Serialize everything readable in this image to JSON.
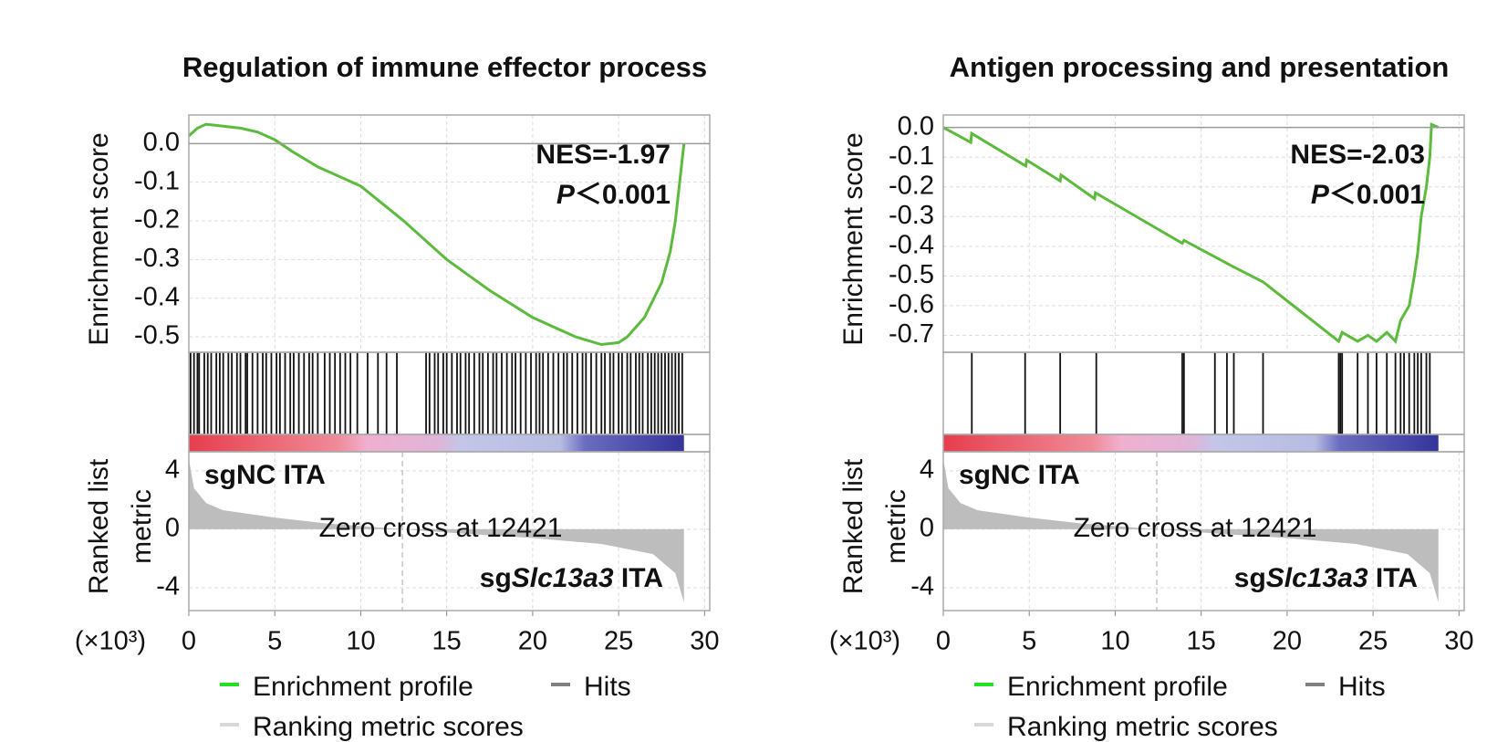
{
  "chart_data": [
    {
      "type": "line",
      "title": "Regulation of immune effector process",
      "ylabel": "Enrichment score",
      "y2label": [
        "Ranked list",
        "metric"
      ],
      "x_unit": "(×10³)",
      "nes": "NES=-1.97",
      "p_symbol": "P",
      "p_text": "＜0.001",
      "high_label": "sgNC ITA",
      "low_label": [
        "sg",
        "Slc13a3",
        " ITA"
      ],
      "zero_cross_label": "Zero cross at 12421",
      "zero_cross": 12.421,
      "xlim": [
        0,
        30.3
      ],
      "xticks": [
        0,
        5,
        10,
        15,
        20,
        25,
        30
      ],
      "ylim": [
        -0.54,
        0.074
      ],
      "yticks": [
        {
          "value": 0,
          "label": "0.0"
        },
        -0.1,
        -0.2,
        -0.3,
        -0.4,
        -0.5
      ],
      "y2lim": [
        -5.56,
        5.3
      ],
      "y2ticks": [
        4,
        0,
        -4
      ],
      "grid": true,
      "series": [
        {
          "name": "Enrichment profile",
          "color": "#5cba3c",
          "x": [
            0,
            0.5,
            1,
            2,
            3,
            4,
            5,
            6,
            7.5,
            10,
            12.5,
            15,
            17.5,
            20,
            22.5,
            24,
            25,
            25.5,
            26.5,
            27.5,
            28,
            28.3,
            28.6,
            28.8
          ],
          "values": [
            0.02,
            0.04,
            0.05,
            0.045,
            0.04,
            0.03,
            0.01,
            -0.02,
            -0.06,
            -0.11,
            -0.2,
            -0.3,
            -0.38,
            -0.45,
            -0.5,
            -0.52,
            -0.515,
            -0.5,
            -0.45,
            -0.36,
            -0.28,
            -0.2,
            -0.08,
            0
          ]
        },
        {
          "name": "Hits",
          "color": "#808080",
          "x": [
            0.1,
            0.3,
            0.5,
            0.6,
            0.9,
            1.1,
            1.3,
            1.6,
            1.8,
            2.0,
            2.3,
            2.5,
            2.8,
            3.0,
            3.3,
            3.4,
            3.7,
            4.0,
            4.3,
            4.5,
            4.8,
            5.1,
            5.3,
            5.6,
            5.9,
            6.1,
            6.4,
            6.7,
            7.0,
            7.2,
            7.5,
            7.9,
            8.2,
            8.5,
            8.8,
            9.1,
            9.4,
            9.8,
            10.4,
            11.0,
            11.5,
            12.1,
            13.8,
            14.0,
            14.3,
            14.5,
            14.8,
            15.0,
            15.3,
            15.6,
            15.8,
            16.1,
            16.3,
            16.6,
            16.9,
            17.1,
            17.4,
            17.7,
            17.9,
            18.2,
            18.5,
            18.8,
            19.0,
            19.3,
            19.6,
            19.9,
            20.2,
            20.4,
            20.6,
            20.9,
            21.2,
            21.5,
            21.8,
            22.0,
            22.3,
            22.6,
            22.9,
            23.1,
            23.4,
            23.7,
            24.0,
            24.2,
            24.5,
            24.7,
            25.0,
            25.2,
            25.5,
            25.7,
            26.0,
            26.2,
            26.4,
            26.7,
            26.9,
            27.1,
            27.3,
            27.5,
            27.7,
            27.9,
            28.1,
            28.3,
            28.5,
            28.7
          ]
        },
        {
          "name": "Ranking metric scores",
          "color": "#d8d8d8",
          "axis": "y2",
          "x": [
            0,
            0.3,
            1,
            2,
            5,
            8,
            12.421,
            16,
            20,
            24,
            27,
            28.3,
            28.8
          ],
          "values": [
            4.8,
            2.8,
            1.8,
            1.3,
            0.8,
            0.4,
            0,
            -0.3,
            -0.6,
            -1,
            -1.7,
            -3,
            -5
          ]
        }
      ]
    },
    {
      "type": "line",
      "title": "Antigen processing and presentation",
      "ylabel": "Enrichment score",
      "y2label": [
        "Ranked list",
        "metric"
      ],
      "x_unit": "(×10³)",
      "nes": "NES=-2.03",
      "p_symbol": "P",
      "p_text": "＜0.001",
      "high_label": "sgNC ITA",
      "low_label": [
        "sg",
        "Slc13a3",
        " ITA"
      ],
      "zero_cross_label": "Zero cross at 12421",
      "zero_cross": 12.421,
      "xlim": [
        0,
        30.3
      ],
      "xticks": [
        0,
        5,
        10,
        15,
        20,
        25,
        30
      ],
      "ylim": [
        -0.757,
        0.042
      ],
      "yticks": [
        {
          "value": 0,
          "label": "0.0"
        },
        -0.1,
        -0.2,
        -0.3,
        -0.4,
        -0.5,
        -0.6,
        -0.7
      ],
      "y2lim": [
        -5.56,
        5.3
      ],
      "y2ticks": [
        4,
        0,
        -4
      ],
      "grid": true,
      "series": [
        {
          "name": "Enrichment profile",
          "color": "#5cba3c",
          "x": [
            0,
            1.6,
            1.65,
            4.8,
            4.85,
            6.8,
            6.85,
            8.8,
            8.85,
            13.9,
            14.0,
            16.9,
            18.6,
            23.0,
            23.2,
            24.1,
            24.7,
            25.2,
            25.8,
            26.3,
            26.6,
            27.1,
            27.4,
            27.6,
            27.8,
            28.1,
            28.3,
            28.4,
            28.8
          ],
          "values": [
            0,
            -0.05,
            -0.02,
            -0.13,
            -0.11,
            -0.18,
            -0.16,
            -0.24,
            -0.22,
            -0.39,
            -0.38,
            -0.47,
            -0.52,
            -0.72,
            -0.69,
            -0.72,
            -0.7,
            -0.72,
            -0.69,
            -0.72,
            -0.65,
            -0.6,
            -0.5,
            -0.42,
            -0.3,
            -0.2,
            -0.1,
            0.01,
            0
          ]
        },
        {
          "name": "Hits",
          "color": "#808080",
          "x": [
            1.66,
            4.76,
            6.8,
            8.9,
            13.9,
            14.0,
            15.8,
            16.5,
            16.9,
            18.6,
            23.0,
            23.1,
            23.2,
            24.1,
            24.7,
            25.2,
            25.8,
            26.3,
            26.6,
            26.8,
            27.1,
            27.4,
            27.6,
            27.8,
            28.1,
            28.3
          ]
        },
        {
          "name": "Ranking metric scores",
          "color": "#d8d8d8",
          "axis": "y2",
          "x": [
            0,
            0.3,
            1,
            2,
            5,
            8,
            12.421,
            16,
            20,
            24,
            27,
            28.3,
            28.8
          ],
          "values": [
            4.8,
            2.8,
            1.8,
            1.3,
            0.8,
            0.4,
            0,
            -0.3,
            -0.6,
            -1,
            -1.7,
            -3,
            -5
          ]
        }
      ]
    }
  ]
}
